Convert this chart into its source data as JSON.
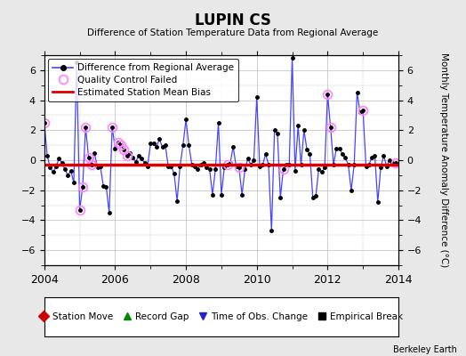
{
  "title": "LUPIN CS",
  "subtitle": "Difference of Station Temperature Data from Regional Average",
  "ylabel": "Monthly Temperature Anomaly Difference (°C)",
  "ylim": [
    -7,
    7
  ],
  "bias": -0.3,
  "background_color": "#e8e8e8",
  "plot_bg_color": "#ffffff",
  "line_color": "#4444ff",
  "bias_color": "#dd0000",
  "qc_color": "#ff88ff",
  "watermark": "Berkeley Earth",
  "dates": [
    2004.0,
    2004.083,
    2004.167,
    2004.25,
    2004.333,
    2004.417,
    2004.5,
    2004.583,
    2004.667,
    2004.75,
    2004.833,
    2004.917,
    2005.0,
    2005.083,
    2005.167,
    2005.25,
    2005.333,
    2005.417,
    2005.5,
    2005.583,
    2005.667,
    2005.75,
    2005.833,
    2005.917,
    2006.0,
    2006.083,
    2006.167,
    2006.25,
    2006.333,
    2006.417,
    2006.5,
    2006.583,
    2006.667,
    2006.75,
    2006.833,
    2006.917,
    2007.0,
    2007.083,
    2007.167,
    2007.25,
    2007.333,
    2007.417,
    2007.5,
    2007.583,
    2007.667,
    2007.75,
    2007.833,
    2007.917,
    2008.0,
    2008.083,
    2008.167,
    2008.25,
    2008.333,
    2008.417,
    2008.5,
    2008.583,
    2008.667,
    2008.75,
    2008.833,
    2008.917,
    2009.0,
    2009.083,
    2009.167,
    2009.25,
    2009.333,
    2009.417,
    2009.5,
    2009.583,
    2009.667,
    2009.75,
    2009.833,
    2009.917,
    2010.0,
    2010.083,
    2010.167,
    2010.25,
    2010.333,
    2010.417,
    2010.5,
    2010.583,
    2010.667,
    2010.75,
    2010.833,
    2010.917,
    2011.0,
    2011.083,
    2011.167,
    2011.25,
    2011.333,
    2011.417,
    2011.5,
    2011.583,
    2011.667,
    2011.75,
    2011.833,
    2011.917,
    2012.0,
    2012.083,
    2012.167,
    2012.25,
    2012.333,
    2012.417,
    2012.5,
    2012.583,
    2012.667,
    2012.75,
    2012.833,
    2012.917,
    2013.0,
    2013.083,
    2013.167,
    2013.25,
    2013.333,
    2013.417,
    2013.5,
    2013.583,
    2013.667,
    2013.75,
    2013.833,
    2013.917
  ],
  "values": [
    2.5,
    0.3,
    -0.5,
    -0.8,
    -0.4,
    0.1,
    -0.2,
    -0.6,
    -1.0,
    -0.7,
    -1.5,
    6.5,
    -3.3,
    -1.8,
    2.2,
    0.2,
    -0.3,
    0.5,
    -0.5,
    -0.4,
    -1.7,
    -1.8,
    -3.5,
    2.2,
    0.8,
    1.2,
    1.0,
    0.7,
    0.3,
    0.5,
    0.2,
    -0.1,
    0.3,
    0.1,
    -0.2,
    -0.4,
    1.1,
    1.1,
    0.9,
    1.4,
    0.9,
    1.0,
    -0.4,
    -0.4,
    -0.9,
    -2.7,
    -0.4,
    1.0,
    2.7,
    1.0,
    -0.3,
    -0.4,
    -0.6,
    -0.3,
    -0.2,
    -0.5,
    -0.6,
    -2.3,
    -0.6,
    2.5,
    -2.3,
    -0.5,
    -0.3,
    -0.2,
    0.9,
    -0.4,
    -0.5,
    -2.3,
    -0.6,
    0.1,
    -0.3,
    0.0,
    4.2,
    -0.4,
    -0.3,
    0.4,
    -0.3,
    -4.7,
    2.0,
    1.8,
    -2.5,
    -0.6,
    -0.3,
    -0.3,
    6.8,
    -0.7,
    2.3,
    -0.3,
    2.0,
    0.7,
    0.4,
    -2.5,
    -2.4,
    -0.6,
    -0.8,
    -0.5,
    4.4,
    2.2,
    -0.3,
    0.8,
    0.8,
    0.4,
    0.2,
    -0.3,
    -2.0,
    -0.3,
    4.5,
    3.2,
    3.3,
    -0.4,
    -0.3,
    0.2,
    0.3,
    -2.8,
    -0.5,
    0.3,
    -0.4,
    0.0,
    -0.2,
    -0.2
  ],
  "qc_failed_indices": [
    0,
    12,
    13,
    14,
    15,
    16,
    23,
    25,
    26,
    27,
    28,
    62,
    66,
    81,
    96,
    97,
    108,
    119
  ]
}
